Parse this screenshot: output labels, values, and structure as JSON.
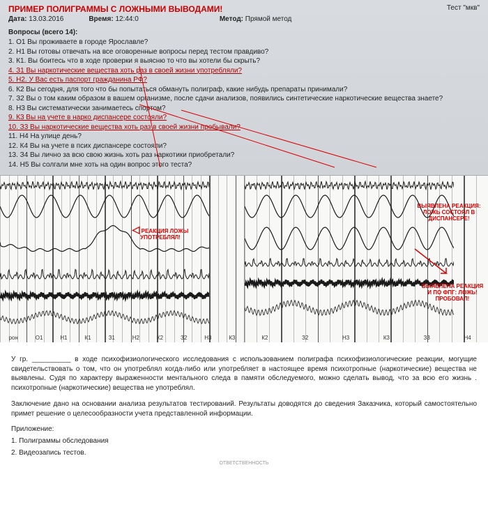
{
  "header": {
    "title": "ПРИМЕР ПОЛИГРАММЫ С ЛОЖНЫМИ ВЫВОДАМИ!",
    "test_label": "Тест",
    "test_value": "\"мкв\"",
    "date_label": "Дата:",
    "date_value": "13.03.2016",
    "time_label": "Время:",
    "time_value": "12:44:0",
    "method_label": "Метод:",
    "method_value": "Прямой метод"
  },
  "questions": {
    "header": "Вопросы (всего 14):",
    "items": [
      {
        "n": "1.",
        "c": "О1",
        "t": "Вы проживаете в городе Ярославле?",
        "hl": false
      },
      {
        "n": "2.",
        "c": "Н1",
        "t": "Вы готовы отвечать на все оговоренные вопросы перед тестом правдиво?",
        "hl": false
      },
      {
        "n": "3.",
        "c": "К1.",
        "t": "Вы боитесь что в ходе проверки я выясню то что вы хотели бы скрыть?",
        "hl": false
      },
      {
        "n": "4.",
        "c": "З1",
        "t": "Вы наркотические вещества хоть раз в своей жизни употребляли?",
        "hl": true
      },
      {
        "n": "5.",
        "c": "Н2.",
        "t": "У Вас есть паспорт гражданина РФ?",
        "hl": true
      },
      {
        "n": "6.",
        "c": "К2",
        "t": "Вы сегодня, для того что бы попытаться обмануть полиграф, какие нибудь препараты принимали?",
        "hl": false
      },
      {
        "n": "7.",
        "c": "З2",
        "t": "Вы о том каким образом в вашем организме, после сдачи анализов, появились синтетические наркотические вещества знаете?",
        "hl": false
      },
      {
        "n": "8.",
        "c": "Н3",
        "t": "Вы систематически занимаетесь спортом?",
        "hl": false
      },
      {
        "n": "9.",
        "c": "К3",
        "t": "Вы на учете в нарко диспансере состояли?",
        "hl": true
      },
      {
        "n": "10.",
        "c": "З3",
        "t": "Вы наркотические вещества хоть раз в своей жизни пробывали?",
        "hl": true
      },
      {
        "n": "11.",
        "c": "Н4",
        "t": "На улице день?",
        "hl": false
      },
      {
        "n": "12.",
        "c": "К4",
        "t": "Вы на учете в псих диспансере состояли?",
        "hl": false
      },
      {
        "n": "13.",
        "c": "З4",
        "t": "Вы лично за всю свою жизнь хоть раз наркотики приобретали?",
        "hl": false
      },
      {
        "n": "14.",
        "c": "Н5",
        "t": "Вы солгали мне хоть на один вопрос этого теста?",
        "hl": false
      }
    ]
  },
  "charts": {
    "red_labels": {
      "left_main": "РЕАКЦИЯ ЛОЖЫ\nУПОТРЕБЛЯЛ!",
      "right_top": "ВЫЯВЛЕНА РЕАКЦИЯ:\nЛОЖЬ\nСОСТОЯЛ В\nДИСПАНСЕРЕ!",
      "right_bottom": "ВЫЯВЛЕНА\nРЕАКЦИЯ И ПО\nФПГ: ЛОЖЬ!\nПРОБОВАЛ!"
    },
    "track_labels_left": [
      "рон",
      "О1",
      "Н1",
      "К1",
      "З1",
      "Н2",
      "К2",
      "З2",
      "Н3",
      "К3"
    ],
    "track_labels_right": [
      "К2",
      "З2",
      "Н3",
      "К3",
      "З3",
      "Н4"
    ],
    "colors": {
      "wave_stroke": "#1a1a1a",
      "grid": "#bbbbbb",
      "grid_strong": "#555555",
      "label_red": "#d00000",
      "bg": "#f8f8f6"
    }
  },
  "bottom": {
    "para1": "У гр. __________ в ходе психофизиологического исследования с использованием полиграфа психофизиологические реакции, могущие свидетельствовать о том, что он употреблял когда-либо или употребляет в настоящее время психотропные (наркотические) вещества не выявлены. Судя по характеру выраженности ментального следа в памяти обследуемого, можно сделать вывод, что за всю его жизнь . психотропные (наркотические) вещества не употреблял.",
    "para2": "Заключение дано на основании анализа результатов тестирований. Результаты доводятся до сведения Заказчика, который самостоятельно примет решение о целесообразности учета представленной информации.",
    "attach_header": "Приложение:",
    "attach1": "1. Полиграммы обследования",
    "attach2": "2. Видеозапись тестов.",
    "stamp": "ОТВЕТСТВЕННОСТЬ"
  }
}
